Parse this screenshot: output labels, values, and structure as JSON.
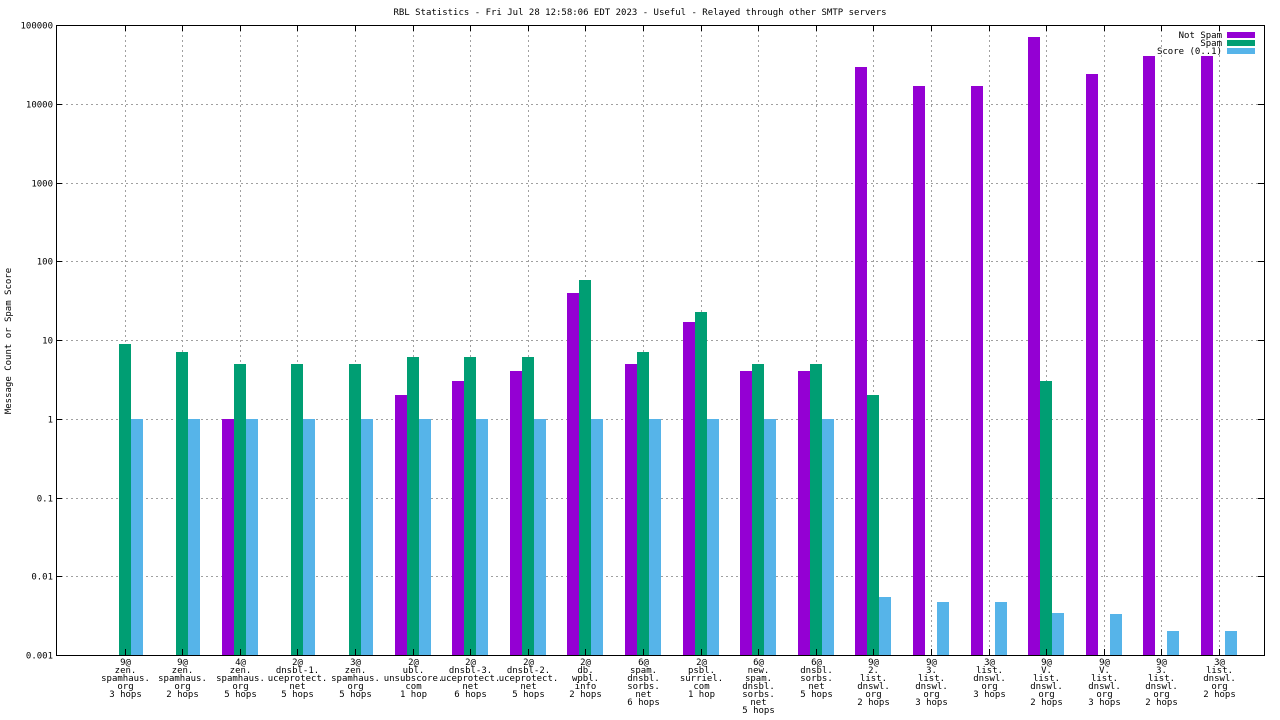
{
  "chart_data": {
    "type": "bar",
    "title": "RBL Statistics - Fri Jul 28 12:58:06 EDT 2023 - Useful - Relayed through other SMTP servers",
    "xlabel": "",
    "ylabel": "Message Count or Spam Score",
    "yscale": "log",
    "ylim": [
      0.001,
      100000
    ],
    "y_ticks": [
      "0.001",
      "0.01",
      "0.1",
      "1",
      "10",
      "100",
      "1000",
      "10000",
      "100000"
    ],
    "grid": true,
    "legend_position": "top-right",
    "categories": [
      [
        "9@",
        "zen.",
        "spamhaus.",
        "org",
        "3 hops"
      ],
      [
        "9@",
        "zen.",
        "spamhaus.",
        "org",
        "2 hops"
      ],
      [
        "4@",
        "zen.",
        "spamhaus.",
        "org",
        "5 hops"
      ],
      [
        "2@",
        "dnsbl-1.",
        "uceprotect.",
        "net",
        "5 hops"
      ],
      [
        "3@",
        "zen.",
        "spamhaus.",
        "org",
        "5 hops"
      ],
      [
        "2@",
        "ubl.",
        "unsubscore.",
        "com",
        "1 hop"
      ],
      [
        "2@",
        "dnsbl-3.",
        "uceprotect.",
        "net",
        "6 hops"
      ],
      [
        "2@",
        "dnsbl-2.",
        "uceprotect.",
        "net",
        "5 hops"
      ],
      [
        "2@",
        "db.",
        "wpbl.",
        "info",
        "2 hops"
      ],
      [
        "6@",
        "spam.",
        "dnsbl.",
        "sorbs.",
        "net",
        "6 hops"
      ],
      [
        "2@",
        "psbl.",
        "surriel.",
        "com",
        "1 hop"
      ],
      [
        "6@",
        "new.",
        "spam.",
        "dnsbl.",
        "sorbs.",
        "net",
        "5 hops"
      ],
      [
        "6@",
        "dnsbl.",
        "sorbs.",
        "net",
        "5 hops"
      ],
      [
        "9@",
        "2.",
        "list.",
        "dnswl.",
        "org",
        "2 hops"
      ],
      [
        "9@",
        "3.",
        "list.",
        "dnswl.",
        "org",
        "3 hops"
      ],
      [
        "3@",
        "list.",
        "dnswl.",
        "org",
        "3 hops"
      ],
      [
        "9@",
        "V.",
        "list.",
        "dnswl.",
        "org",
        "2 hops"
      ],
      [
        "9@",
        "V.",
        "list.",
        "dnswl.",
        "org",
        "3 hops"
      ],
      [
        "9@",
        "3.",
        "list.",
        "dnswl.",
        "org",
        "2 hops"
      ],
      [
        "3@",
        "list.",
        "dnswl.",
        "org",
        "2 hops"
      ]
    ],
    "series": [
      {
        "name": "Not Spam",
        "color": "#9400d3",
        "values": [
          null,
          null,
          1,
          null,
          null,
          2,
          3,
          4,
          40,
          5,
          17,
          4,
          4,
          29000,
          17000,
          17000,
          70000,
          24000,
          40000,
          40000
        ]
      },
      {
        "name": "Spam",
        "color": "#009e73",
        "values": [
          9,
          7,
          5,
          5,
          5,
          6,
          6,
          6,
          57,
          7,
          23,
          5,
          5,
          2,
          null,
          null,
          3,
          null,
          null,
          null
        ]
      },
      {
        "name": "Score (0..1)",
        "color": "#56b4e9",
        "values": [
          1,
          1,
          1,
          1,
          1,
          1,
          1,
          1,
          1,
          1,
          1,
          1,
          1,
          0.0055,
          0.0047,
          0.0047,
          0.0034,
          0.0033,
          0.002,
          0.002
        ]
      }
    ]
  }
}
